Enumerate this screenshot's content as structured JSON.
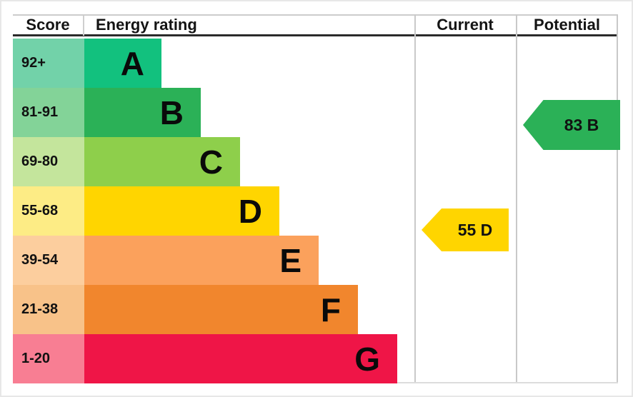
{
  "header": {
    "score": "Score",
    "energy_rating": "Energy rating",
    "current": "Current",
    "potential": "Potential"
  },
  "chart_data": {
    "type": "bar",
    "description": "EPC energy efficiency rating chart",
    "columns": [
      "Score",
      "Energy rating",
      "Current",
      "Potential"
    ],
    "bands": [
      {
        "range": "92+",
        "letter": "A",
        "color": "#12c17e",
        "tint": "#72d2a9"
      },
      {
        "range": "81-91",
        "letter": "B",
        "color": "#2bb157",
        "tint": "#83d398"
      },
      {
        "range": "69-80",
        "letter": "C",
        "color": "#8ecf4b",
        "tint": "#c4e59c"
      },
      {
        "range": "55-68",
        "letter": "D",
        "color": "#ffd500",
        "tint": "#fdec85"
      },
      {
        "range": "39-54",
        "letter": "E",
        "color": "#fba15c",
        "tint": "#fcce9e"
      },
      {
        "range": "21-38",
        "letter": "F",
        "color": "#f1862d",
        "tint": "#f8c289"
      },
      {
        "range": "1-20",
        "letter": "G",
        "color": "#ef1547",
        "tint": "#f87e93"
      }
    ],
    "current": {
      "label": "55 D",
      "value": 55,
      "letter": "D",
      "band_range": "55-68",
      "color": "#ffd500",
      "row_index": 3
    },
    "potential": {
      "label": "83 B",
      "value": 83,
      "letter": "B",
      "band_range": "81-91",
      "color": "#2bb157",
      "row_index": 1
    }
  }
}
